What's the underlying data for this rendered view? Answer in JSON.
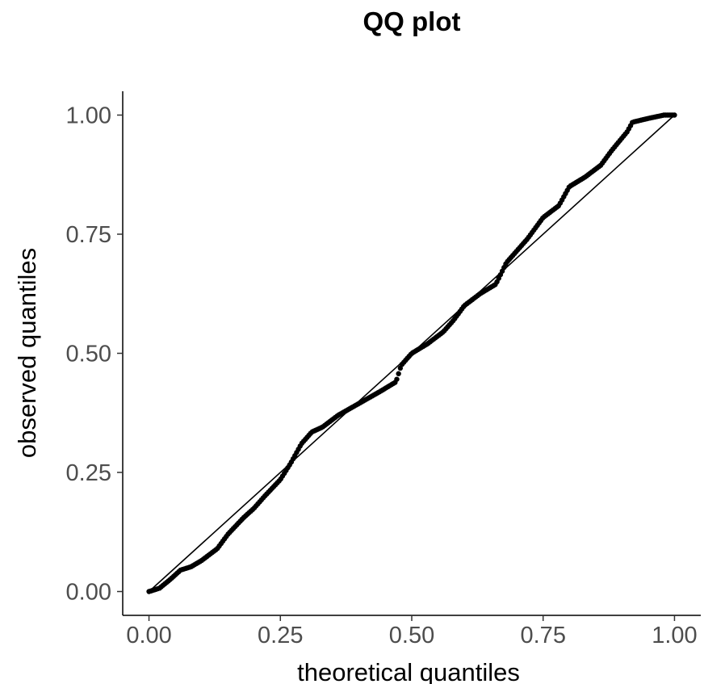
{
  "chart_data": {
    "type": "scatter",
    "title": "QQ plot",
    "xlabel": "theoretical quantiles",
    "ylabel": "observed quantiles",
    "xlim": [
      -0.05,
      1.05
    ],
    "ylim": [
      -0.05,
      1.05
    ],
    "x_ticks": [
      "0.00",
      "0.25",
      "0.50",
      "0.75",
      "1.00"
    ],
    "y_ticks": [
      "0.00",
      "0.25",
      "0.50",
      "0.75",
      "1.00"
    ],
    "x_tick_values": [
      0,
      0.25,
      0.5,
      0.75,
      1
    ],
    "y_tick_values": [
      0,
      0.25,
      0.5,
      0.75,
      1
    ],
    "grid": false,
    "reference_line": {
      "from": [
        0,
        0
      ],
      "to": [
        1,
        1
      ]
    },
    "curve_points": [
      [
        0.0,
        0.0
      ],
      [
        0.02,
        0.007
      ],
      [
        0.04,
        0.025
      ],
      [
        0.06,
        0.045
      ],
      [
        0.08,
        0.052
      ],
      [
        0.1,
        0.065
      ],
      [
        0.13,
        0.09
      ],
      [
        0.15,
        0.12
      ],
      [
        0.18,
        0.155
      ],
      [
        0.2,
        0.175
      ],
      [
        0.22,
        0.2
      ],
      [
        0.25,
        0.235
      ],
      [
        0.27,
        0.27
      ],
      [
        0.29,
        0.31
      ],
      [
        0.31,
        0.335
      ],
      [
        0.33,
        0.345
      ],
      [
        0.36,
        0.37
      ],
      [
        0.4,
        0.395
      ],
      [
        0.44,
        0.42
      ],
      [
        0.47,
        0.44
      ],
      [
        0.48,
        0.475
      ],
      [
        0.5,
        0.5
      ],
      [
        0.53,
        0.52
      ],
      [
        0.56,
        0.545
      ],
      [
        0.58,
        0.57
      ],
      [
        0.6,
        0.6
      ],
      [
        0.63,
        0.625
      ],
      [
        0.66,
        0.645
      ],
      [
        0.68,
        0.69
      ],
      [
        0.72,
        0.74
      ],
      [
        0.75,
        0.785
      ],
      [
        0.78,
        0.81
      ],
      [
        0.8,
        0.85
      ],
      [
        0.83,
        0.87
      ],
      [
        0.86,
        0.895
      ],
      [
        0.88,
        0.925
      ],
      [
        0.91,
        0.965
      ],
      [
        0.92,
        0.985
      ],
      [
        0.95,
        0.993
      ],
      [
        0.98,
        1.0
      ],
      [
        1.0,
        1.0
      ]
    ],
    "n_points": 300,
    "point_color": "#000000",
    "line_color": "#000000"
  }
}
